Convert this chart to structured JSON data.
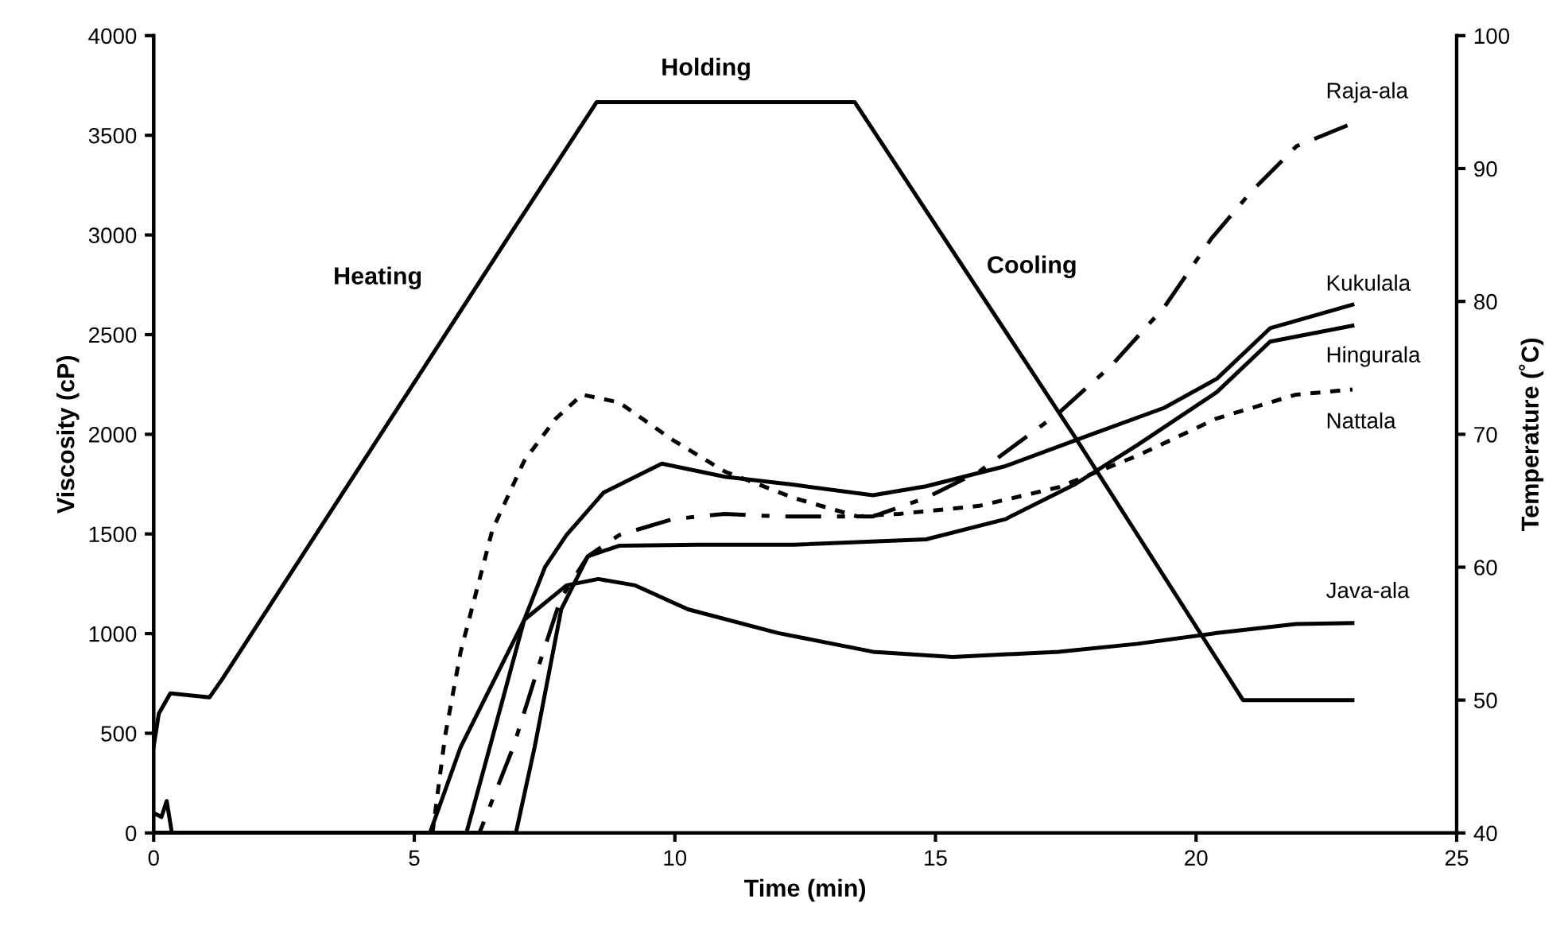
{
  "chart_data": {
    "type": "line",
    "xlabel": "Time (min)",
    "ylabel": "Viscosity (cP)",
    "y2label": "Temperature (˚C)",
    "xlim": [
      0,
      25
    ],
    "xticks": [
      0,
      5,
      10,
      15,
      20,
      25
    ],
    "ylim": [
      0,
      4000
    ],
    "yticks": [
      0,
      500,
      1000,
      1500,
      2000,
      2500,
      3000,
      3500,
      4000
    ],
    "y2lim": [
      40,
      100
    ],
    "y2ticks": [
      40,
      50,
      60,
      70,
      80,
      90,
      100
    ],
    "grid": false,
    "legend": false,
    "marker": "none",
    "annotations": [
      "Heating",
      "Holding",
      "Cooling"
    ],
    "series": [
      {
        "color": "#000000",
        "axis": "y2",
        "line_style": "solid",
        "x": [
          0,
          0.1,
          0.32,
          1.07,
          1.32,
          6.8,
          8.5,
          13.45,
          17.71,
          20.9,
          23
        ],
        "values": [
          46.5,
          49,
          50.5,
          50.2,
          51.6,
          84.8,
          95,
          95,
          69.6,
          50,
          50
        ]
      },
      {
        "name": "Raja-ala",
        "color": "#000000",
        "line_style": "dashed",
        "x": [
          0,
          6.25,
          6.9,
          7.41,
          7.81,
          8.33,
          8.93,
          9.95,
          10.96,
          11.98,
          13.8,
          14.82,
          15.84,
          17.36,
          18.38,
          19.39,
          20.3,
          21.05,
          21.93,
          23
        ],
        "values": [
          0,
          0,
          431,
          856,
          1175,
          1388,
          1494,
          1574,
          1601,
          1588,
          1588,
          1681,
          1813,
          2106,
          2346,
          2638,
          2984,
          3215,
          3446,
          3560
        ]
      },
      {
        "name": "Kukulala",
        "color": "#000000",
        "line_style": "solid",
        "x": [
          0,
          6.0,
          6.45,
          7.11,
          7.51,
          7.92,
          8.63,
          9.75,
          10.96,
          12.28,
          13.8,
          14.82,
          16.34,
          17.86,
          19.39,
          20.4,
          21.42,
          23
        ],
        "values": [
          0,
          0,
          431,
          1069,
          1335,
          1494,
          1707,
          1853,
          1787,
          1747,
          1694,
          1739,
          1840,
          1987,
          2133,
          2279,
          2532,
          2650
        ]
      },
      {
        "name": "Hingurala",
        "color": "#000000",
        "line_style": "solid",
        "x": [
          0,
          6.95,
          7.31,
          7.82,
          8.33,
          8.93,
          10.45,
          12.28,
          14.82,
          16.34,
          17.66,
          18.88,
          20.4,
          21.42,
          23
        ],
        "values": [
          0,
          0,
          431,
          1122,
          1388,
          1441,
          1446,
          1446,
          1473,
          1574,
          1747,
          1947,
          2212,
          2465,
          2545
        ]
      },
      {
        "name": "Nattala",
        "color": "#000000",
        "line_style": "dotted",
        "x": [
          0,
          5.35,
          5.59,
          5.89,
          6.5,
          7.11,
          7.72,
          8.22,
          8.93,
          9.95,
          10.96,
          12.28,
          13.5,
          14.31,
          15.84,
          17.36,
          18.88,
          20.4,
          21.92,
          23
        ],
        "values": [
          0,
          0,
          484,
          909,
          1521,
          1867,
          2080,
          2199,
          2160,
          1973,
          1813,
          1681,
          1588,
          1601,
          1641,
          1734,
          1893,
          2080,
          2199,
          2225
        ]
      },
      {
        "name": "Java-ala",
        "color": "#000000",
        "line_style": "solid",
        "x": [
          0,
          0.15,
          0.25,
          0.35,
          5.3,
          5.89,
          7.11,
          7.92,
          8.53,
          9.24,
          10.25,
          11.98,
          13.8,
          15.33,
          17.36,
          18.88,
          20.4,
          21.92,
          23
        ],
        "values": [
          100,
          80,
          160,
          0,
          0,
          431,
          1069,
          1242,
          1274,
          1242,
          1122,
          1003,
          909,
          883,
          909,
          949,
          1003,
          1048,
          1053
        ]
      }
    ]
  }
}
